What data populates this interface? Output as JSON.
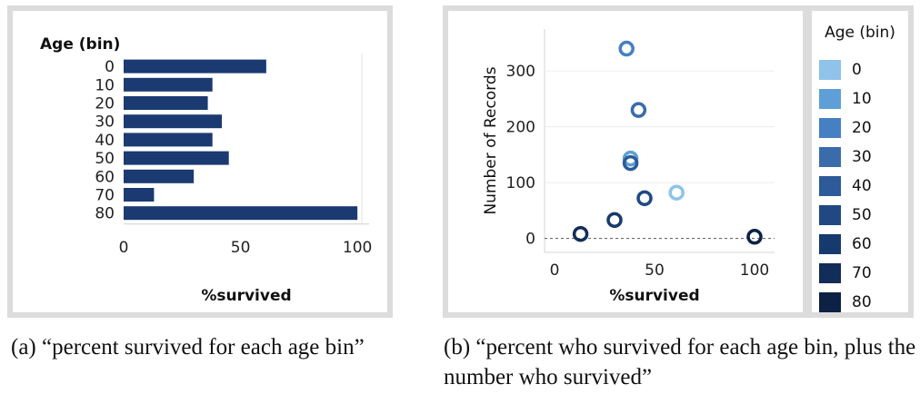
{
  "chart_data": [
    {
      "type": "bar",
      "orientation": "horizontal",
      "title": "",
      "xlabel": "%survived",
      "ylabel": "Age (bin)",
      "categories": [
        "0",
        "10",
        "20",
        "30",
        "40",
        "50",
        "60",
        "70",
        "80"
      ],
      "values": [
        61,
        38,
        36,
        42,
        38,
        45,
        30,
        13,
        100
      ],
      "xticks": [
        "0",
        "50",
        "100"
      ],
      "xlim": [
        0,
        105
      ],
      "color": "#1b3a72",
      "grid": false
    },
    {
      "type": "scatter",
      "title": "",
      "xlabel": "%survived",
      "ylabel": "Number of Records",
      "xlim": [
        -5,
        110
      ],
      "ylim": [
        -25,
        375
      ],
      "xticks": [
        "0",
        "50",
        "100"
      ],
      "yticks": [
        "0",
        "100",
        "200",
        "300"
      ],
      "grid": true,
      "legend_title": "Age (bin)",
      "legend_position": "right",
      "series": [
        {
          "name": "0",
          "color": "#8fc3e9",
          "x": 61,
          "y": 82
        },
        {
          "name": "10",
          "color": "#5d9fd6",
          "x": 38,
          "y": 143
        },
        {
          "name": "20",
          "color": "#4680c3",
          "x": 36,
          "y": 340
        },
        {
          "name": "30",
          "color": "#3a6cab",
          "x": 42,
          "y": 230
        },
        {
          "name": "40",
          "color": "#2d5a98",
          "x": 38,
          "y": 135
        },
        {
          "name": "50",
          "color": "#204984",
          "x": 45,
          "y": 72
        },
        {
          "name": "60",
          "color": "#173a6e",
          "x": 30,
          "y": 33
        },
        {
          "name": "70",
          "color": "#122d58",
          "x": 13,
          "y": 8
        },
        {
          "name": "80",
          "color": "#0d2145",
          "x": 100,
          "y": 3
        }
      ]
    }
  ],
  "captions": {
    "a": "(a) “percent survived for each age bin”",
    "b": "(b) “percent who survived for each age bin, plus the number who survived”"
  }
}
